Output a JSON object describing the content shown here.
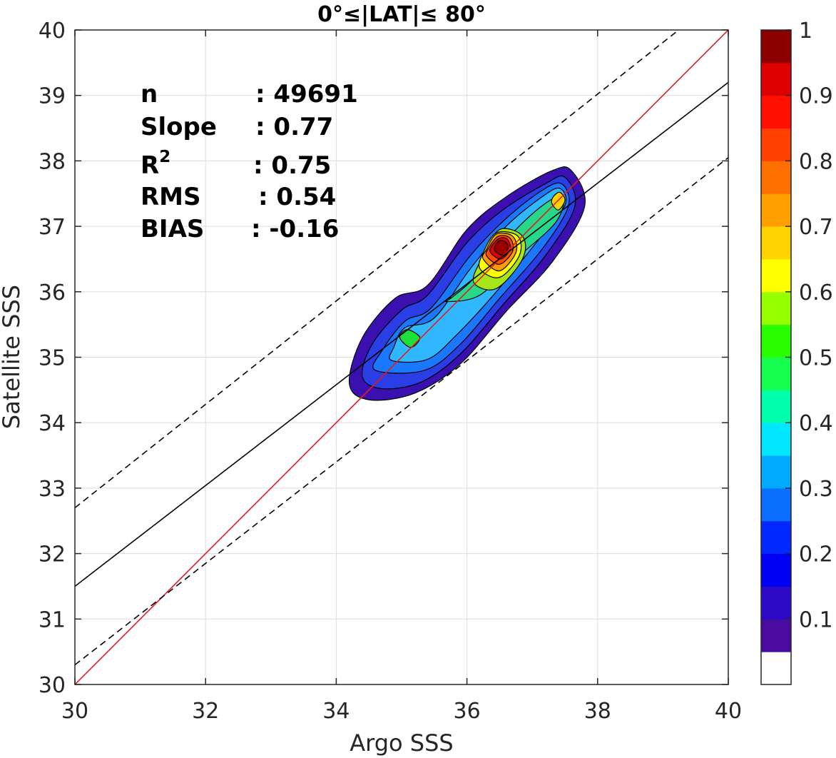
{
  "chart_data": {
    "type": "contour-density-scatter",
    "title": "0°≤|LAT|≤ 80°",
    "xlabel": "Argo SSS",
    "ylabel": "Satellite SSS",
    "xlim": [
      30,
      40
    ],
    "ylim": [
      30,
      40
    ],
    "xticks": [
      30,
      32,
      34,
      36,
      38,
      40
    ],
    "yticks": [
      30,
      31,
      32,
      33,
      34,
      35,
      36,
      37,
      38,
      39,
      40
    ],
    "grid": true,
    "stats": [
      {
        "label": "n",
        "value": ": 49691"
      },
      {
        "label": "Slope",
        "value": ": 0.77"
      },
      {
        "label": "R",
        "sup": "2",
        "value": ": 0.75"
      },
      {
        "label": "RMS",
        "value": ": 0.54"
      },
      {
        "label": "BIAS",
        "value": ": -0.16"
      }
    ],
    "lines": [
      {
        "role": "one-to-one",
        "color": "#e41a1c",
        "style": "solid",
        "points": [
          [
            30,
            30
          ],
          [
            40,
            40
          ]
        ]
      },
      {
        "role": "fit",
        "color": "#000000",
        "style": "solid",
        "points": [
          [
            30,
            31.5
          ],
          [
            40,
            39.2
          ]
        ]
      },
      {
        "role": "upper-bound",
        "color": "#000000",
        "style": "dashed",
        "points": [
          [
            30,
            32.7
          ],
          [
            40,
            40.6
          ]
        ]
      },
      {
        "role": "lower-bound",
        "color": "#000000",
        "style": "dashed",
        "points": [
          [
            30,
            30.3
          ],
          [
            40,
            38.05
          ]
        ]
      }
    ],
    "density_contours": [
      {
        "level": 0.05,
        "color": "#3a10b0",
        "points": [
          [
            34.2,
            34.6
          ],
          [
            34.5,
            34.35
          ],
          [
            35.2,
            34.45
          ],
          [
            35.9,
            34.9
          ],
          [
            36.6,
            35.7
          ],
          [
            37.3,
            36.45
          ],
          [
            37.8,
            37.3
          ],
          [
            37.6,
            37.85
          ],
          [
            37.3,
            37.85
          ],
          [
            36.6,
            37.45
          ],
          [
            36.0,
            36.95
          ],
          [
            35.4,
            36.1
          ],
          [
            34.9,
            35.9
          ],
          [
            34.4,
            35.3
          ]
        ]
      },
      {
        "level": 0.15,
        "color": "#2a3ee6",
        "points": [
          [
            34.4,
            34.7
          ],
          [
            34.7,
            34.52
          ],
          [
            35.3,
            34.62
          ],
          [
            35.9,
            35.05
          ],
          [
            36.55,
            35.8
          ],
          [
            37.2,
            36.55
          ],
          [
            37.65,
            37.3
          ],
          [
            37.5,
            37.75
          ],
          [
            37.2,
            37.65
          ],
          [
            36.55,
            37.25
          ],
          [
            36.0,
            36.75
          ],
          [
            35.4,
            35.95
          ],
          [
            35.0,
            35.72
          ],
          [
            34.55,
            35.2
          ]
        ]
      },
      {
        "level": 0.25,
        "color": "#1a78ff",
        "points": [
          [
            34.6,
            34.8
          ],
          [
            35.35,
            34.8
          ],
          [
            35.9,
            35.2
          ],
          [
            36.5,
            35.9
          ],
          [
            37.15,
            36.65
          ],
          [
            37.55,
            37.3
          ],
          [
            37.45,
            37.65
          ],
          [
            37.15,
            37.55
          ],
          [
            36.6,
            37.12
          ],
          [
            36.05,
            36.55
          ],
          [
            35.45,
            35.75
          ],
          [
            35.05,
            35.55
          ],
          [
            34.7,
            35.1
          ]
        ]
      },
      {
        "level": 0.35,
        "color": "#2fb8ff",
        "points": [
          [
            34.85,
            34.95
          ],
          [
            35.4,
            34.97
          ],
          [
            35.85,
            35.35
          ],
          [
            36.45,
            36.0
          ],
          [
            37.1,
            36.8
          ],
          [
            37.5,
            37.32
          ],
          [
            37.42,
            37.58
          ],
          [
            37.15,
            37.45
          ],
          [
            36.6,
            37.0
          ],
          [
            36.05,
            36.35
          ],
          [
            35.5,
            35.6
          ],
          [
            35.05,
            35.45
          ],
          [
            34.88,
            35.15
          ]
        ]
      },
      {
        "level": 0.45,
        "color": "#27d88a",
        "points": [
          [
            35.7,
            35.85
          ],
          [
            36.2,
            35.95
          ],
          [
            36.75,
            36.5
          ],
          [
            37.35,
            37.05
          ],
          [
            37.48,
            37.45
          ],
          [
            37.2,
            37.35
          ],
          [
            36.7,
            36.9
          ],
          [
            36.1,
            36.2
          ],
          [
            35.78,
            35.92
          ]
        ]
      },
      {
        "level": 0.5,
        "color": "#1fe03a",
        "points": [
          [
            35.0,
            35.25
          ],
          [
            35.15,
            35.15
          ],
          [
            35.28,
            35.3
          ],
          [
            35.1,
            35.42
          ],
          [
            34.98,
            35.35
          ]
        ]
      },
      {
        "level": 0.55,
        "color": "#a6e619",
        "points": [
          [
            36.1,
            36.15
          ],
          [
            36.45,
            36.05
          ],
          [
            36.85,
            36.5
          ],
          [
            36.85,
            36.85
          ],
          [
            36.5,
            36.95
          ],
          [
            36.25,
            36.55
          ]
        ]
      },
      {
        "level": 0.65,
        "color": "#ffff00",
        "points": [
          [
            36.2,
            36.35
          ],
          [
            36.5,
            36.22
          ],
          [
            36.8,
            36.55
          ],
          [
            36.78,
            36.85
          ],
          [
            36.45,
            36.9
          ],
          [
            36.25,
            36.6
          ]
        ]
      },
      {
        "level": 0.65,
        "color": "#ffd200",
        "points": [
          [
            37.3,
            37.35
          ],
          [
            37.4,
            37.25
          ],
          [
            37.5,
            37.4
          ],
          [
            37.42,
            37.52
          ],
          [
            37.32,
            37.45
          ]
        ]
      },
      {
        "level": 0.75,
        "color": "#ff9a00",
        "points": [
          [
            36.25,
            36.5
          ],
          [
            36.5,
            36.32
          ],
          [
            36.75,
            36.6
          ],
          [
            36.7,
            36.85
          ],
          [
            36.45,
            36.88
          ],
          [
            36.3,
            36.65
          ]
        ]
      },
      {
        "level": 0.85,
        "color": "#ff4a00",
        "points": [
          [
            36.3,
            36.55
          ],
          [
            36.5,
            36.42
          ],
          [
            36.7,
            36.62
          ],
          [
            36.66,
            36.82
          ],
          [
            36.48,
            36.85
          ],
          [
            36.34,
            36.68
          ]
        ]
      },
      {
        "level": 0.92,
        "color": "#e0000c",
        "points": [
          [
            36.36,
            36.6
          ],
          [
            36.52,
            36.5
          ],
          [
            36.66,
            36.65
          ],
          [
            36.62,
            36.8
          ],
          [
            36.5,
            36.82
          ],
          [
            36.38,
            36.7
          ]
        ]
      },
      {
        "level": 0.97,
        "color": "#9a0000",
        "points": [
          [
            36.42,
            36.64
          ],
          [
            36.55,
            36.56
          ],
          [
            36.63,
            36.68
          ],
          [
            36.58,
            36.77
          ],
          [
            36.48,
            36.77
          ]
        ]
      }
    ],
    "colorbar": {
      "tick_labels": [
        "1",
        "0.9",
        "0.8",
        "0.7",
        "0.6",
        "0.5",
        "0.4",
        "0.3",
        "0.2",
        "0.1"
      ],
      "tick_values": [
        1,
        0.9,
        0.8,
        0.7,
        0.6,
        0.5,
        0.4,
        0.3,
        0.2,
        0.1
      ],
      "colors": [
        "#ffffff",
        "#4b0aa0",
        "#2d0ac8",
        "#0000f5",
        "#0028ff",
        "#0a6eff",
        "#00aaff",
        "#00e6ff",
        "#00ffaa",
        "#14ff50",
        "#28ff00",
        "#96ff00",
        "#ffff00",
        "#ffd200",
        "#ffa000",
        "#ff7000",
        "#ff4000",
        "#ff1000",
        "#dc0000",
        "#8c0000"
      ]
    }
  }
}
